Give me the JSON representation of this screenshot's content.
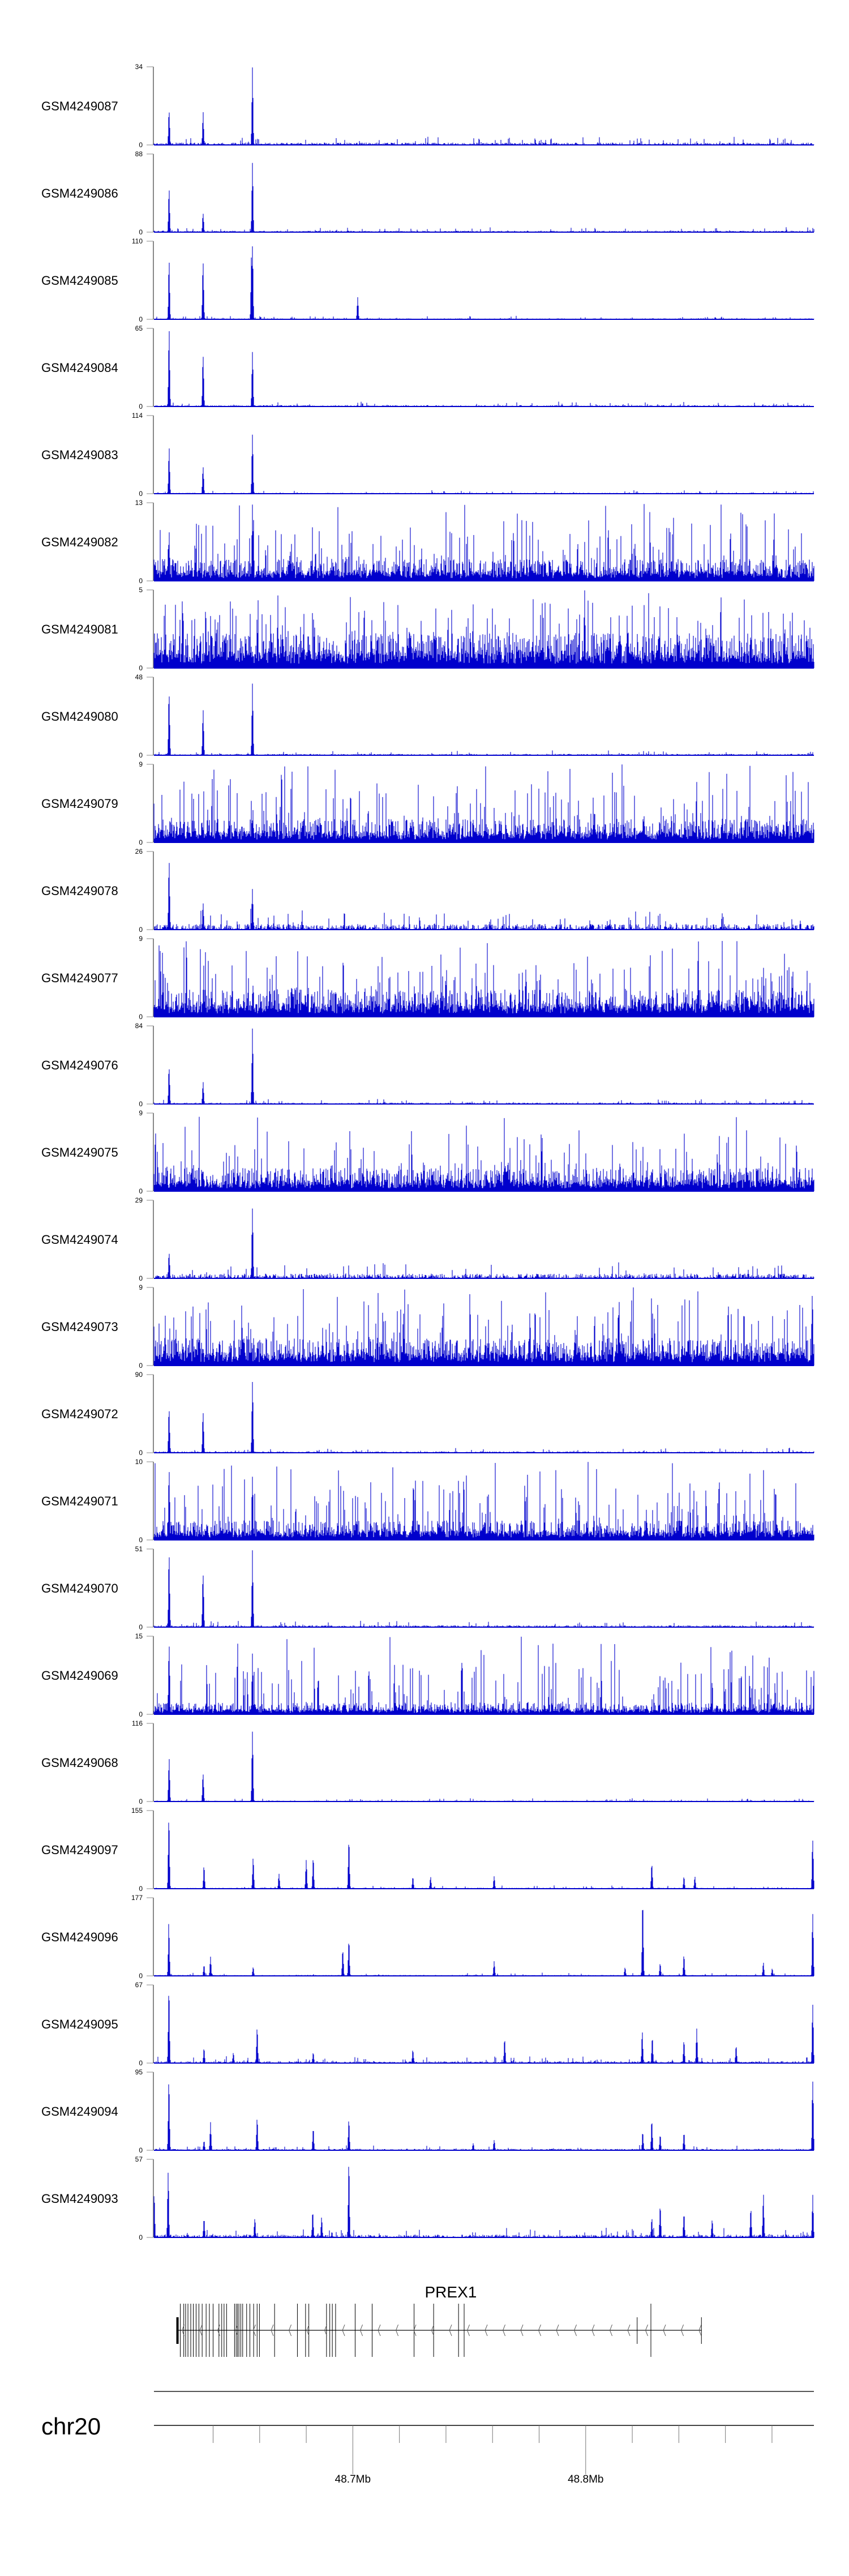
{
  "colors": {
    "signal": "#0000cc",
    "axis": "#888888",
    "gene": "#000000"
  },
  "chart_data": {
    "type": "area",
    "title": "",
    "chromosome": "chr20",
    "xlim_mb": [
      48.6146,
      48.898
    ],
    "x_ticks_mb": [
      48.64,
      48.66,
      48.68,
      48.7,
      48.72,
      48.74,
      48.76,
      48.78,
      48.8,
      48.82,
      48.84,
      48.86,
      48.88
    ],
    "x_labels": [
      {
        "mb": 48.7,
        "label": "48.7Mb"
      },
      {
        "mb": 48.8,
        "label": "48.8Mb"
      }
    ],
    "tracks": [
      {
        "name": "GSM4249087",
        "ymax": 34,
        "noise": 0.05,
        "noisy": false,
        "peaks": [
          [
            48.6211,
            0.47
          ],
          [
            48.6357,
            0.44
          ],
          [
            48.6569,
            1.0
          ]
        ]
      },
      {
        "name": "GSM4249086",
        "ymax": 88,
        "noise": 0.03,
        "noisy": false,
        "peaks": [
          [
            48.6211,
            0.55
          ],
          [
            48.6357,
            0.25
          ],
          [
            48.6569,
            1.0
          ]
        ]
      },
      {
        "name": "GSM4249085",
        "ymax": 110,
        "noise": 0.02,
        "noisy": false,
        "peaks": [
          [
            48.6211,
            0.75
          ],
          [
            48.6357,
            0.83
          ],
          [
            48.6565,
            0.9
          ],
          [
            48.6569,
            1.0
          ],
          [
            48.7021,
            0.3
          ]
        ]
      },
      {
        "name": "GSM4249084",
        "ymax": 65,
        "noise": 0.03,
        "noisy": false,
        "peaks": [
          [
            48.6211,
            1.0
          ],
          [
            48.6357,
            0.7
          ],
          [
            48.6569,
            0.75
          ]
        ]
      },
      {
        "name": "GSM4249083",
        "ymax": 114,
        "noise": 0.02,
        "noisy": false,
        "peaks": [
          [
            48.6211,
            0.6
          ],
          [
            48.6357,
            0.4
          ],
          [
            48.6569,
            0.82
          ]
        ]
      },
      {
        "name": "GSM4249082",
        "ymax": 13,
        "noise": 0.28,
        "noisy": true,
        "peaks": [
          [
            48.6211,
            0.65
          ],
          [
            48.6569,
            1.0
          ]
        ]
      },
      {
        "name": "GSM4249081",
        "ymax": 5,
        "noise": 0.45,
        "noisy": true,
        "peaks": []
      },
      {
        "name": "GSM4249080",
        "ymax": 48,
        "noise": 0.03,
        "noisy": false,
        "peaks": [
          [
            48.6211,
            0.9
          ],
          [
            48.6357,
            0.6
          ],
          [
            48.6569,
            0.92
          ]
        ]
      },
      {
        "name": "GSM4249079",
        "ymax": 9,
        "noise": 0.3,
        "noisy": true,
        "peaks": []
      },
      {
        "name": "GSM4249078",
        "ymax": 26,
        "noise": 0.12,
        "noisy": false,
        "peaks": [
          [
            48.6211,
            1.0
          ],
          [
            48.6357,
            0.35
          ],
          [
            48.6569,
            0.55
          ]
        ]
      },
      {
        "name": "GSM4249077",
        "ymax": 9,
        "noise": 0.35,
        "noisy": true,
        "peaks": []
      },
      {
        "name": "GSM4249076",
        "ymax": 84,
        "noise": 0.03,
        "noisy": false,
        "peaks": [
          [
            48.6211,
            0.5
          ],
          [
            48.6357,
            0.3
          ],
          [
            48.6569,
            1.0
          ]
        ]
      },
      {
        "name": "GSM4249075",
        "ymax": 9,
        "noise": 0.3,
        "noisy": true,
        "peaks": []
      },
      {
        "name": "GSM4249074",
        "ymax": 29,
        "noise": 0.1,
        "noisy": false,
        "peaks": [
          [
            48.6211,
            0.35
          ],
          [
            48.6569,
            0.95
          ]
        ]
      },
      {
        "name": "GSM4249073",
        "ymax": 9,
        "noise": 0.35,
        "noisy": true,
        "peaks": []
      },
      {
        "name": "GSM4249072",
        "ymax": 90,
        "noise": 0.03,
        "noisy": false,
        "peaks": [
          [
            48.6211,
            0.6
          ],
          [
            48.6357,
            0.55
          ],
          [
            48.6569,
            1.0
          ]
        ]
      },
      {
        "name": "GSM4249071",
        "ymax": 10,
        "noise": 0.25,
        "noisy": true,
        "peaks": [
          [
            48.6211,
            1.0
          ],
          [
            48.6569,
            0.9
          ]
        ]
      },
      {
        "name": "GSM4249070",
        "ymax": 51,
        "noise": 0.04,
        "noisy": false,
        "peaks": [
          [
            48.6211,
            1.0
          ],
          [
            48.6357,
            0.75
          ],
          [
            48.6569,
            1.0
          ]
        ]
      },
      {
        "name": "GSM4249069",
        "ymax": 15,
        "noise": 0.15,
        "noisy": true,
        "peaks": [
          [
            48.6211,
            1.0
          ],
          [
            48.6569,
            0.8
          ]
        ]
      },
      {
        "name": "GSM4249068",
        "ymax": 116,
        "noise": 0.02,
        "noisy": false,
        "peaks": [
          [
            48.6211,
            0.6
          ],
          [
            48.6357,
            0.4
          ],
          [
            48.6569,
            1.0
          ]
        ]
      },
      {
        "name": "GSM4249097",
        "ymax": 155,
        "noise": 0.02,
        "noisy": false,
        "peaks": [
          [
            48.621,
            1.0
          ],
          [
            48.6361,
            0.3
          ],
          [
            48.6572,
            0.45
          ],
          [
            48.6683,
            0.2
          ],
          [
            48.68,
            0.4
          ],
          [
            48.683,
            0.4
          ],
          [
            48.6983,
            0.68
          ],
          [
            48.7258,
            0.16
          ],
          [
            48.7334,
            0.16
          ],
          [
            48.7607,
            0.17
          ],
          [
            48.8284,
            0.35
          ],
          [
            48.8422,
            0.16
          ],
          [
            48.8469,
            0.16
          ],
          [
            48.8975,
            0.72
          ]
        ]
      },
      {
        "name": "GSM4249096",
        "ymax": 177,
        "noise": 0.02,
        "noisy": false,
        "peaks": [
          [
            48.621,
            0.7
          ],
          [
            48.6361,
            0.14
          ],
          [
            48.6389,
            0.25
          ],
          [
            48.6572,
            0.12
          ],
          [
            48.6957,
            0.36
          ],
          [
            48.6983,
            0.5
          ],
          [
            48.7607,
            0.2
          ],
          [
            48.8169,
            0.12
          ],
          [
            48.8245,
            1.0
          ],
          [
            48.832,
            0.17
          ],
          [
            48.8422,
            0.27
          ],
          [
            48.8763,
            0.18
          ],
          [
            48.8801,
            0.1
          ],
          [
            48.8975,
            0.85
          ]
        ]
      },
      {
        "name": "GSM4249095",
        "ymax": 67,
        "noise": 0.04,
        "noisy": false,
        "peaks": [
          [
            48.621,
            1.0
          ],
          [
            48.6361,
            0.2
          ],
          [
            48.6487,
            0.14
          ],
          [
            48.6589,
            0.5
          ],
          [
            48.683,
            0.15
          ],
          [
            48.7258,
            0.18
          ],
          [
            48.7652,
            0.32
          ],
          [
            48.8243,
            0.42
          ],
          [
            48.8286,
            0.36
          ],
          [
            48.8422,
            0.32
          ],
          [
            48.8477,
            0.45
          ],
          [
            48.8646,
            0.24
          ],
          [
            48.8975,
            0.78
          ]
        ]
      },
      {
        "name": "GSM4249094",
        "ymax": 95,
        "noise": 0.03,
        "noisy": false,
        "peaks": [
          [
            48.621,
            0.97
          ],
          [
            48.6361,
            0.13
          ],
          [
            48.6389,
            0.37
          ],
          [
            48.6589,
            0.45
          ],
          [
            48.683,
            0.3
          ],
          [
            48.6983,
            0.4
          ],
          [
            48.7517,
            0.1
          ],
          [
            48.7607,
            0.15
          ],
          [
            48.8245,
            0.25
          ],
          [
            48.8284,
            0.42
          ],
          [
            48.832,
            0.2
          ],
          [
            48.8422,
            0.23
          ],
          [
            48.8975,
            1.0
          ]
        ]
      },
      {
        "name": "GSM4249093",
        "ymax": 57,
        "noise": 0.06,
        "noisy": false,
        "peaks": [
          [
            48.6147,
            0.6
          ],
          [
            48.6207,
            0.97
          ],
          [
            48.6361,
            0.25
          ],
          [
            48.6579,
            0.27
          ],
          [
            48.6828,
            0.36
          ],
          [
            48.6866,
            0.27
          ],
          [
            48.6983,
            1.0
          ],
          [
            48.8284,
            0.25
          ],
          [
            48.832,
            0.45
          ],
          [
            48.8422,
            0.33
          ],
          [
            48.8543,
            0.25
          ],
          [
            48.8709,
            0.4
          ],
          [
            48.8763,
            0.6
          ],
          [
            48.8975,
            0.55
          ]
        ]
      }
    ],
    "gene": {
      "name": "PREX1",
      "strand": "-",
      "start_mb": 48.6247,
      "end_mb": 48.8497,
      "utr_mb": 48.6247,
      "exons_mb": [
        48.6259,
        48.6274,
        48.6282,
        48.6292,
        48.6304,
        48.6315,
        48.6327,
        48.6339,
        48.6353,
        48.637,
        48.6384,
        48.64,
        48.6425,
        48.6437,
        48.6447,
        48.6458,
        48.6492,
        48.6499,
        48.6505,
        48.6511,
        48.6519,
        48.6527,
        48.6544,
        48.6558,
        48.6574,
        48.6589,
        48.6599,
        48.6664,
        48.6762,
        48.6797,
        48.6811,
        48.6887,
        48.6901,
        48.6912,
        48.6926,
        48.701,
        48.7083,
        48.7263,
        48.7347,
        48.7454,
        48.7478,
        48.828
      ],
      "short_exons_mb": [
        48.8221,
        48.8497
      ]
    }
  }
}
